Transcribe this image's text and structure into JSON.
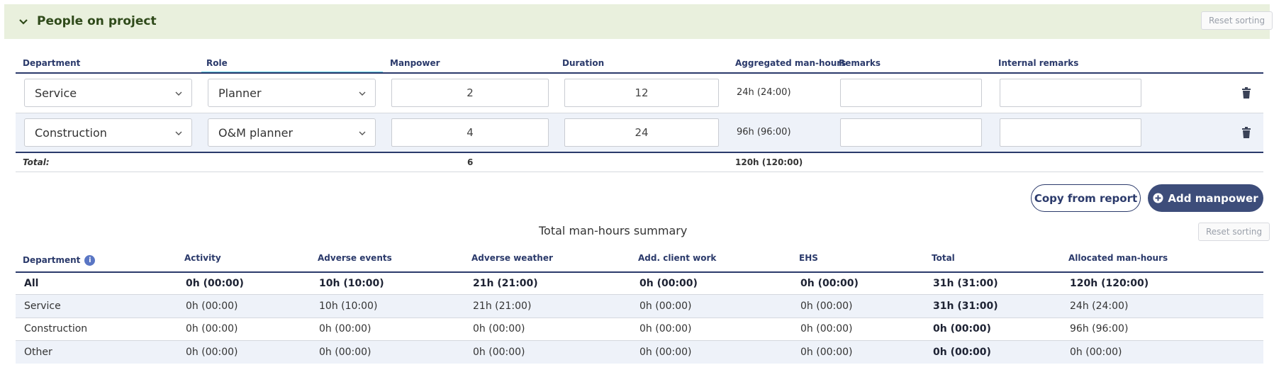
{
  "panel": {
    "title": "People on project",
    "reset_label": "Reset sorting"
  },
  "manpower_table": {
    "headers": [
      "Department",
      "Role",
      "Manpower",
      "Duration",
      "Aggregated man-hours",
      "Remarks",
      "Internal remarks"
    ],
    "rows": [
      {
        "department": "Service",
        "role": "Planner",
        "manpower": "2",
        "duration": "12",
        "aggregated": "24h (24:00)",
        "remarks": "",
        "internal_remarks": ""
      },
      {
        "department": "Construction",
        "role": "O&M planner",
        "manpower": "4",
        "duration": "24",
        "aggregated": "96h (96:00)",
        "remarks": "",
        "internal_remarks": ""
      }
    ],
    "total": {
      "label": "Total:",
      "manpower": "6",
      "aggregated": "120h (120:00)"
    }
  },
  "actions": {
    "copy_label": "Copy from report",
    "add_label": "Add manpower"
  },
  "summary": {
    "title": "Total man-hours summary",
    "reset_label": "Reset sorting",
    "headers": [
      "Department",
      "Activity",
      "Adverse events",
      "Adverse weather",
      "Add. client work",
      "EHS",
      "Total",
      "Allocated man-hours"
    ],
    "rows": [
      [
        "All",
        "0h (00:00)",
        "10h (10:00)",
        "21h (21:00)",
        "0h (00:00)",
        "0h (00:00)",
        "31h (31:00)",
        "120h (120:00)"
      ],
      [
        "Service",
        "0h (00:00)",
        "10h (10:00)",
        "21h (21:00)",
        "0h (00:00)",
        "0h (00:00)",
        "31h (31:00)",
        "24h (24:00)"
      ],
      [
        "Construction",
        "0h (00:00)",
        "0h (00:00)",
        "0h (00:00)",
        "0h (00:00)",
        "0h (00:00)",
        "0h (00:00)",
        "96h (96:00)"
      ],
      [
        "Other",
        "0h (00:00)",
        "0h (00:00)",
        "0h (00:00)",
        "0h (00:00)",
        "0h (00:00)",
        "0h (00:00)",
        "0h (00:00)"
      ]
    ]
  },
  "colors": {
    "header_bg": "#e9f0dd",
    "accent": "#3d4d7a",
    "row_alt": "#eef2f9"
  }
}
